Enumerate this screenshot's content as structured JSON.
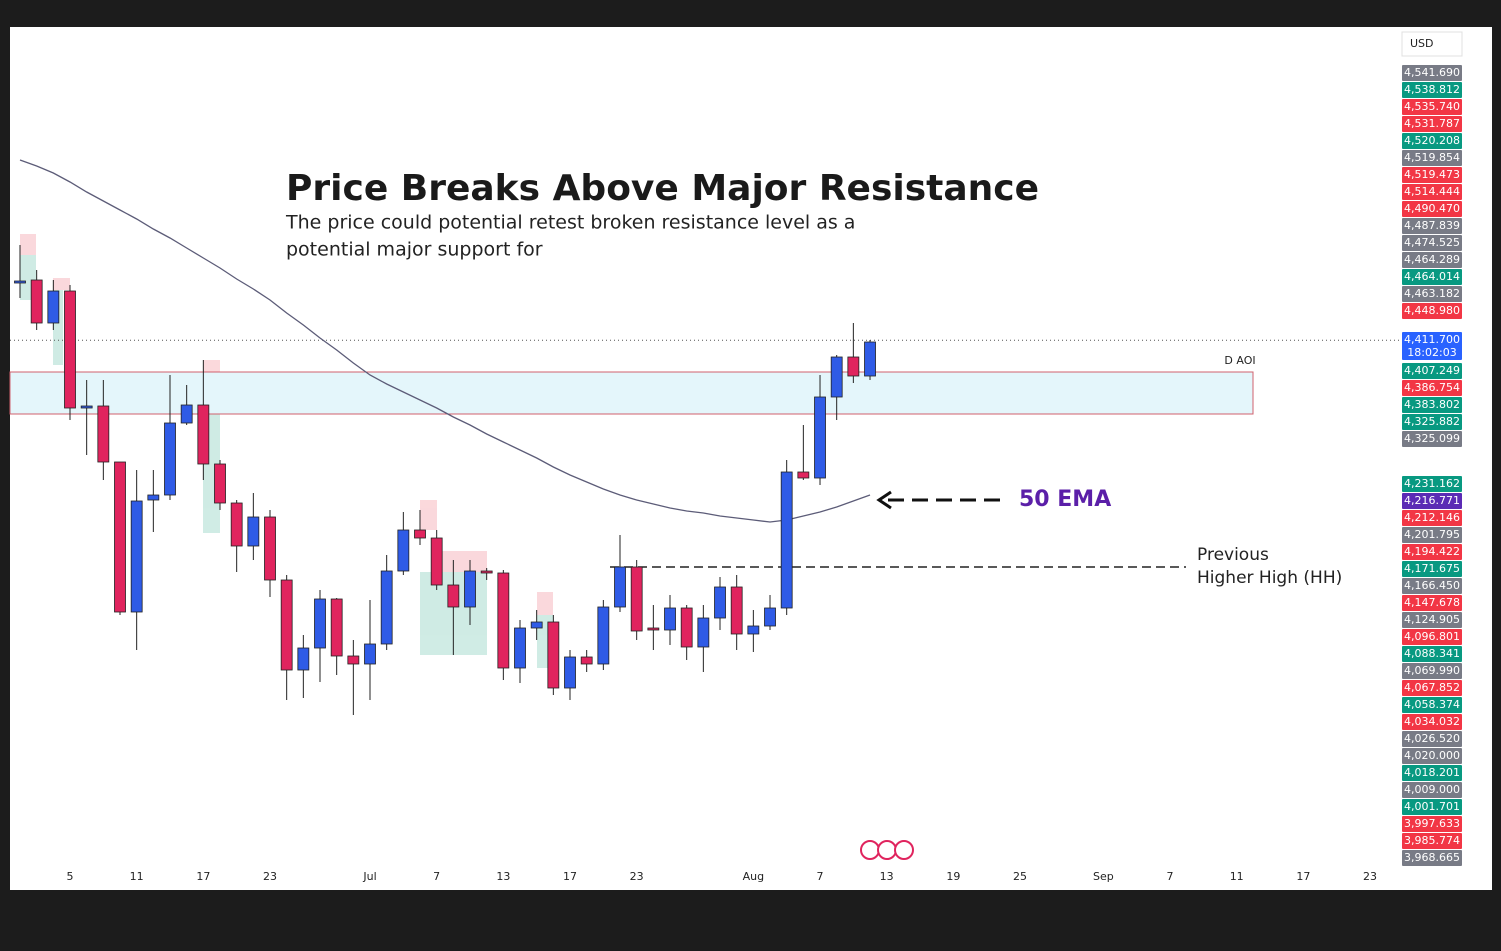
{
  "chart_data": {
    "type": "candlestick",
    "title": "Price Breaks Above Major Resistance",
    "subtitle_lines": [
      "The price  could potential retest broken resistance level as a",
      "potential major support for"
    ],
    "currency": "USD",
    "up_color": "#2f5be6",
    "down_color": "#e0245e",
    "ylim": [
      3590,
      4880
    ],
    "categories": [
      null,
      null,
      null,
      "5",
      null,
      null,
      null,
      "11",
      null,
      null,
      null,
      "17",
      null,
      null,
      null,
      "23",
      null,
      null,
      null,
      null,
      null,
      "Jul",
      null,
      null,
      null,
      "7",
      null,
      null,
      null,
      "13",
      null,
      null,
      null,
      "17",
      null,
      null,
      null,
      "23",
      null,
      null,
      null,
      null,
      null,
      null,
      "Aug",
      null,
      null,
      null,
      "7",
      null,
      null,
      null,
      "13",
      null,
      null,
      null,
      "19",
      null,
      null,
      null,
      "25",
      null,
      null,
      null,
      null,
      "Sep",
      null,
      null,
      null,
      "7",
      null,
      null,
      null,
      "11",
      null,
      null,
      null,
      "17",
      null,
      null,
      null,
      "23"
    ],
    "open": [
      4497.5,
      4502,
      4437.5,
      4485.5,
      4310,
      4313,
      4229,
      4004,
      4172,
      4179.5,
      4287.5,
      4314.5,
      4226,
      4167.5,
      4103,
      4146.5,
      4052,
      3917,
      3950,
      4023.5,
      3938,
      3926,
      3956,
      4065.5,
      4127,
      4115,
      4044.5,
      4011.5,
      4065.5,
      4062.5,
      3920,
      3980,
      3989,
      3890,
      3936.5,
      3926,
      4011.5,
      4071.5,
      3980,
      3977,
      4010,
      3951.5,
      3995,
      4041.5,
      3971,
      3983,
      4010,
      4214,
      4205,
      4326.5,
      4386.5,
      4358,
      null,
      null,
      null,
      null,
      null,
      null,
      null,
      null,
      null,
      null,
      null,
      null,
      null,
      null,
      null,
      null,
      null,
      null,
      null,
      null,
      null,
      null,
      null,
      null,
      null,
      null,
      null,
      null,
      null,
      null
    ],
    "high": [
      4554.5,
      4517,
      4502,
      4494.5,
      4352,
      4352,
      4229,
      4217,
      4217,
      4359.5,
      4344.5,
      4382,
      4232,
      4172,
      4182.5,
      4157,
      4059.5,
      3969.5,
      4037,
      4025,
      3962,
      4022,
      4089.5,
      4154,
      4157,
      4127,
      4082,
      4082,
      4070,
      4067,
      3992,
      4007,
      3999.5,
      3947,
      3947,
      4022,
      4119.5,
      4082,
      4014.5,
      4029.5,
      4014.5,
      4014.5,
      4056.5,
      4059.5,
      4007,
      4029.5,
      4232,
      4284.5,
      4359.5,
      4389.5,
      4437.5,
      4412,
      null,
      null,
      null,
      null,
      null,
      null,
      null,
      null,
      null,
      null,
      null,
      null,
      null,
      null,
      null,
      null,
      null,
      null,
      null,
      null,
      null,
      null,
      null,
      null,
      null,
      null,
      null,
      null,
      null,
      null
    ],
    "low": [
      4475,
      4427,
      4427,
      4292,
      4239.5,
      4202,
      3999.5,
      3947,
      4124,
      4172,
      4284.5,
      4202,
      4157,
      4064,
      4082,
      4026.5,
      3872,
      3875,
      3899,
      3909.5,
      3849.5,
      3872,
      3947,
      4059.5,
      4104.5,
      4037,
      3939.5,
      3984.5,
      4052,
      3902,
      3897.5,
      3962,
      3879.5,
      3872,
      3914,
      3917,
      4004,
      3962,
      3947,
      3954.5,
      3932,
      3914,
      3977,
      3947,
      3944,
      3977,
      3999.5,
      4202,
      4194.5,
      4292,
      4347.5,
      4352,
      null,
      null,
      null,
      null,
      null,
      null,
      null,
      null,
      null,
      null,
      null,
      null,
      null,
      null,
      null,
      null,
      null,
      null,
      null,
      null,
      null,
      null,
      null,
      null,
      null,
      null,
      null,
      null,
      null,
      null
    ],
    "close": [
      4500.5,
      4437.5,
      4485.5,
      4310,
      4313,
      4229,
      4004,
      4170.5,
      4179.5,
      4287.5,
      4314.5,
      4226,
      4167.5,
      4103,
      4146.5,
      4052,
      3917,
      3950,
      4023.5,
      3938,
      3926,
      3956,
      4065.5,
      4127,
      4115,
      4044.5,
      4011.5,
      4065.5,
      4062.5,
      3920,
      3980,
      3989,
      3890,
      3936.5,
      3926,
      4011.5,
      4071.5,
      3975.5,
      3977,
      4010,
      3951.5,
      3995,
      4041.5,
      3971,
      3983,
      4010,
      4214,
      4205,
      4326.5,
      4386.5,
      4358,
      4409,
      null,
      null,
      null,
      null,
      null,
      null,
      null,
      null,
      null,
      null,
      null,
      null,
      null,
      null,
      null,
      null,
      null,
      null,
      null,
      null,
      null,
      null,
      null,
      null,
      null,
      null,
      null,
      null,
      null,
      null
    ],
    "ema_color": "#5c5c78",
    "ema_values": [
      4682,
      4673,
      4662.5,
      4649,
      4634,
      4620.5,
      4607,
      4593.5,
      4578.5,
      4565,
      4550,
      4535,
      4520,
      4503.5,
      4488.5,
      4472,
      4452.5,
      4434.5,
      4415,
      4397,
      4377.5,
      4359.5,
      4346,
      4334,
      4322,
      4310,
      4296.5,
      4284.5,
      4271,
      4259,
      4247,
      4235,
      4221.5,
      4209.5,
      4199,
      4188.5,
      4179.5,
      4172,
      4166,
      4160,
      4155.5,
      4152.5,
      4148,
      4145,
      4142,
      4139,
      4142,
      4148,
      4154,
      4161.5,
      4170.5,
      4179.5,
      null,
      null,
      null,
      null,
      null,
      null,
      null,
      null,
      null,
      null,
      null,
      null,
      null,
      null,
      null,
      null,
      null,
      null,
      null,
      null,
      null,
      null,
      null,
      null,
      null,
      null,
      null,
      null,
      null,
      null
    ],
    "ema_label": "50 EMA",
    "ema_label_color": "#5b1fa8",
    "zone": {
      "label": "D AOI",
      "top": 4364,
      "bottom": 4301,
      "fill": "#e4f6fb",
      "stroke": "#d0606c"
    },
    "hh_line": {
      "value": 4071.5,
      "label_lines": [
        "Previous",
        "Higher High (HH)"
      ]
    },
    "last_price": 4411.7,
    "price_tags": [
      [
        {
          "label": "4,541.690",
          "color": "#787b86"
        },
        {
          "label": "4,538.812",
          "color": "#089981"
        },
        {
          "label": "4,535.740",
          "color": "#f23645"
        },
        {
          "label": "4,531.787",
          "color": "#f23645"
        },
        {
          "label": "4,520.208",
          "color": "#089981"
        },
        {
          "label": "4,519.854",
          "color": "#787b86"
        },
        {
          "label": "4,519.473",
          "color": "#f23645"
        },
        {
          "label": "4,514.444",
          "color": "#f23645"
        },
        {
          "label": "4,490.470",
          "color": "#f23645"
        },
        {
          "label": "4,487.839",
          "color": "#787b86"
        },
        {
          "label": "4,474.525",
          "color": "#787b86"
        },
        {
          "label": "4,464.289",
          "color": "#787b86"
        },
        {
          "label": "4,464.014",
          "color": "#089981"
        },
        {
          "label": "4,463.182",
          "color": "#787b86"
        },
        {
          "label": "4,448.980",
          "color": "#f23645"
        }
      ],
      [
        {
          "label": "4,411.700",
          "color": "#2962ff",
          "countdown": "18:02:03"
        }
      ],
      [
        {
          "label": "4,407.249",
          "color": "#089981"
        },
        {
          "label": "4,386.754",
          "color": "#f23645"
        },
        {
          "label": "4,383.802",
          "color": "#089981"
        },
        {
          "label": "4,325.882",
          "color": "#089981"
        },
        {
          "label": "4,325.099",
          "color": "#787b86"
        }
      ],
      [
        {
          "label": "4,231.162",
          "color": "#089981"
        },
        {
          "label": "4,216.771",
          "color": "#5b2bb5"
        },
        {
          "label": "4,212.146",
          "color": "#f23645"
        },
        {
          "label": "4,201.795",
          "color": "#787b86"
        },
        {
          "label": "4,194.422",
          "color": "#f23645"
        },
        {
          "label": "4,171.675",
          "color": "#089981"
        },
        {
          "label": "4,166.450",
          "color": "#787b86"
        },
        {
          "label": "4,147.678",
          "color": "#f23645"
        },
        {
          "label": "4,124.905",
          "color": "#787b86"
        },
        {
          "label": "4,096.801",
          "color": "#f23645"
        },
        {
          "label": "4,088.341",
          "color": "#089981"
        },
        {
          "label": "4,069.990",
          "color": "#787b86"
        },
        {
          "label": "4,067.852",
          "color": "#f23645"
        },
        {
          "label": "4,058.374",
          "color": "#089981"
        },
        {
          "label": "4,034.032",
          "color": "#f23645"
        },
        {
          "label": "4,026.520",
          "color": "#787b86"
        },
        {
          "label": "4,020.000",
          "color": "#787b86"
        },
        {
          "label": "4,018.201",
          "color": "#089981"
        },
        {
          "label": "4,009.000",
          "color": "#787b86"
        },
        {
          "label": "4,001.701",
          "color": "#089981"
        },
        {
          "label": "3,997.633",
          "color": "#f23645"
        },
        {
          "label": "3,985.774",
          "color": "#f23645"
        },
        {
          "label": "3,968.665",
          "color": "#787b86"
        }
      ]
    ]
  }
}
